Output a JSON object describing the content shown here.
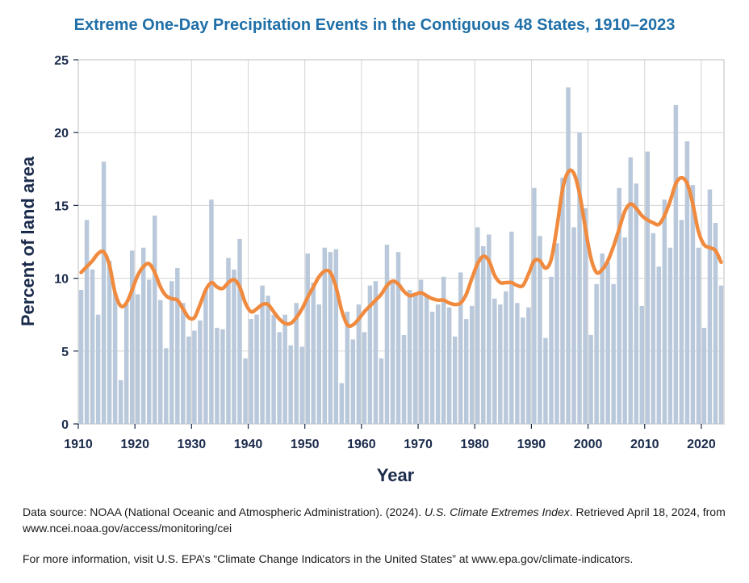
{
  "chart_data": {
    "type": "bar",
    "title": "Extreme One-Day Precipitation Events in the Contiguous 48 States, 1910–2023",
    "xlabel": "Year",
    "ylabel": "Percent of land area",
    "xlim": [
      1910,
      2024
    ],
    "ylim": [
      0,
      25
    ],
    "x_ticks": [
      "1910",
      "1920",
      "1930",
      "1940",
      "1950",
      "1960",
      "1970",
      "1980",
      "1990",
      "2000",
      "2010",
      "2020"
    ],
    "y_ticks": [
      "0",
      "5",
      "10",
      "15",
      "20",
      "25"
    ],
    "grid": true,
    "colors": {
      "bars": "#b9c8da",
      "line": "#f08a3e",
      "grid": "#d4d4d4",
      "text": "#1b2b4b",
      "title": "#1f6fa8"
    },
    "series": [
      {
        "type": "bar",
        "x": [
          1910,
          1911,
          1912,
          1913,
          1914,
          1915,
          1916,
          1917,
          1918,
          1919,
          1920,
          1921,
          1922,
          1923,
          1924,
          1925,
          1926,
          1927,
          1928,
          1929,
          1930,
          1931,
          1932,
          1933,
          1934,
          1935,
          1936,
          1937,
          1938,
          1939,
          1940,
          1941,
          1942,
          1943,
          1944,
          1945,
          1946,
          1947,
          1948,
          1949,
          1950,
          1951,
          1952,
          1953,
          1954,
          1955,
          1956,
          1957,
          1958,
          1959,
          1960,
          1961,
          1962,
          1963,
          1964,
          1965,
          1966,
          1967,
          1968,
          1969,
          1970,
          1971,
          1972,
          1973,
          1974,
          1975,
          1976,
          1977,
          1978,
          1979,
          1980,
          1981,
          1982,
          1983,
          1984,
          1985,
          1986,
          1987,
          1988,
          1989,
          1990,
          1991,
          1992,
          1993,
          1994,
          1995,
          1996,
          1997,
          1998,
          1999,
          2000,
          2001,
          2002,
          2003,
          2004,
          2005,
          2006,
          2007,
          2008,
          2009,
          2010,
          2011,
          2012,
          2013,
          2014,
          2015,
          2016,
          2017,
          2018,
          2019,
          2020,
          2021,
          2022,
          2023
        ],
        "values": [
          9.2,
          14.0,
          10.6,
          7.5,
          18.0,
          11.2,
          9.0,
          3.0,
          8.2,
          11.9,
          8.9,
          12.1,
          9.9,
          14.3,
          8.5,
          5.2,
          9.8,
          10.7,
          8.3,
          6.0,
          6.4,
          7.1,
          9.2,
          15.4,
          6.6,
          6.5,
          11.4,
          10.6,
          12.7,
          4.5,
          7.2,
          7.5,
          9.5,
          8.8,
          7.5,
          6.3,
          7.5,
          5.4,
          8.3,
          5.3,
          11.7,
          9.7,
          8.2,
          12.1,
          11.8,
          12.0,
          2.8,
          7.7,
          5.8,
          8.2,
          6.3,
          9.5,
          9.8,
          4.5,
          12.3,
          9.7,
          11.8,
          6.1,
          9.2,
          8.9,
          9.9,
          8.8,
          7.7,
          8.2,
          10.1,
          8.0,
          6.0,
          10.4,
          7.2,
          8.1,
          13.5,
          12.2,
          13.0,
          8.6,
          8.2,
          9.1,
          13.2,
          8.3,
          7.3,
          8.0,
          16.2,
          12.9,
          5.9,
          10.1,
          12.4,
          16.9,
          23.1,
          13.5,
          20.0,
          14.8,
          6.1,
          9.6,
          11.7,
          11.1,
          9.6,
          16.2,
          12.8,
          18.3,
          16.5,
          8.1,
          18.7,
          13.1,
          10.8,
          15.4,
          12.1,
          21.9,
          14.0,
          19.4,
          16.4,
          12.1,
          6.6,
          16.1,
          13.8,
          9.5
        ]
      },
      {
        "type": "line",
        "x": [
          1910,
          1911,
          1912,
          1913,
          1914,
          1915,
          1916,
          1917,
          1918,
          1919,
          1920,
          1921,
          1922,
          1923,
          1924,
          1925,
          1926,
          1927,
          1928,
          1929,
          1930,
          1931,
          1932,
          1933,
          1934,
          1935,
          1936,
          1937,
          1938,
          1939,
          1940,
          1941,
          1942,
          1943,
          1944,
          1945,
          1946,
          1947,
          1948,
          1949,
          1950,
          1951,
          1952,
          1953,
          1954,
          1955,
          1956,
          1957,
          1958,
          1959,
          1960,
          1961,
          1962,
          1963,
          1964,
          1965,
          1966,
          1967,
          1968,
          1969,
          1970,
          1971,
          1972,
          1973,
          1974,
          1975,
          1976,
          1977,
          1978,
          1979,
          1980,
          1981,
          1982,
          1983,
          1984,
          1985,
          1986,
          1987,
          1988,
          1989,
          1990,
          1991,
          1992,
          1993,
          1994,
          1995,
          1996,
          1997,
          1998,
          1999,
          2000,
          2001,
          2002,
          2003,
          2004,
          2005,
          2006,
          2007,
          2008,
          2009,
          2010,
          2011,
          2012,
          2013,
          2014,
          2015,
          2016,
          2017,
          2018,
          2019,
          2020,
          2021,
          2022,
          2023
        ],
        "values": [
          10.4,
          10.8,
          11.2,
          11.7,
          11.8,
          10.9,
          9.0,
          8.1,
          8.3,
          9.2,
          10.2,
          10.8,
          11.0,
          10.4,
          9.4,
          8.8,
          8.6,
          8.5,
          7.9,
          7.3,
          7.3,
          8.2,
          9.2,
          9.7,
          9.4,
          9.3,
          9.7,
          9.9,
          9.4,
          8.3,
          7.7,
          7.9,
          8.2,
          8.2,
          7.7,
          7.2,
          6.9,
          6.9,
          7.3,
          7.9,
          8.7,
          9.4,
          10.1,
          10.5,
          10.4,
          9.4,
          7.8,
          6.8,
          6.8,
          7.2,
          7.7,
          8.1,
          8.5,
          8.9,
          9.5,
          9.8,
          9.6,
          9.1,
          8.8,
          8.9,
          9.0,
          8.8,
          8.6,
          8.5,
          8.5,
          8.3,
          8.2,
          8.3,
          8.9,
          10.0,
          11.0,
          11.5,
          11.2,
          10.2,
          9.7,
          9.7,
          9.7,
          9.5,
          9.5,
          10.3,
          11.2,
          11.2,
          10.7,
          11.3,
          13.5,
          16.1,
          17.3,
          17.2,
          15.8,
          13.5,
          11.4,
          10.4,
          10.6,
          11.2,
          12.2,
          13.4,
          14.6,
          15.1,
          14.8,
          14.3,
          14.0,
          13.8,
          13.7,
          14.3,
          15.3,
          16.5,
          16.9,
          16.5,
          15.1,
          13.2,
          12.3,
          12.1,
          11.9,
          11.1
        ]
      }
    ],
    "notes": [
      {
        "pre": "Data source: NOAA (National Oceanic and Atmospheric Administration). (2024). ",
        "ital": "U.S. Climate Extremes Index",
        "post": ". Retrieved April 18, 2024, from www.ncei.noaa.gov/access/monitoring/cei"
      },
      {
        "pre": "For more information, visit U.S. EPA’s “Climate Change Indicators in the United States” at www.epa.gov/climate-indicators.",
        "ital": "",
        "post": ""
      }
    ]
  }
}
